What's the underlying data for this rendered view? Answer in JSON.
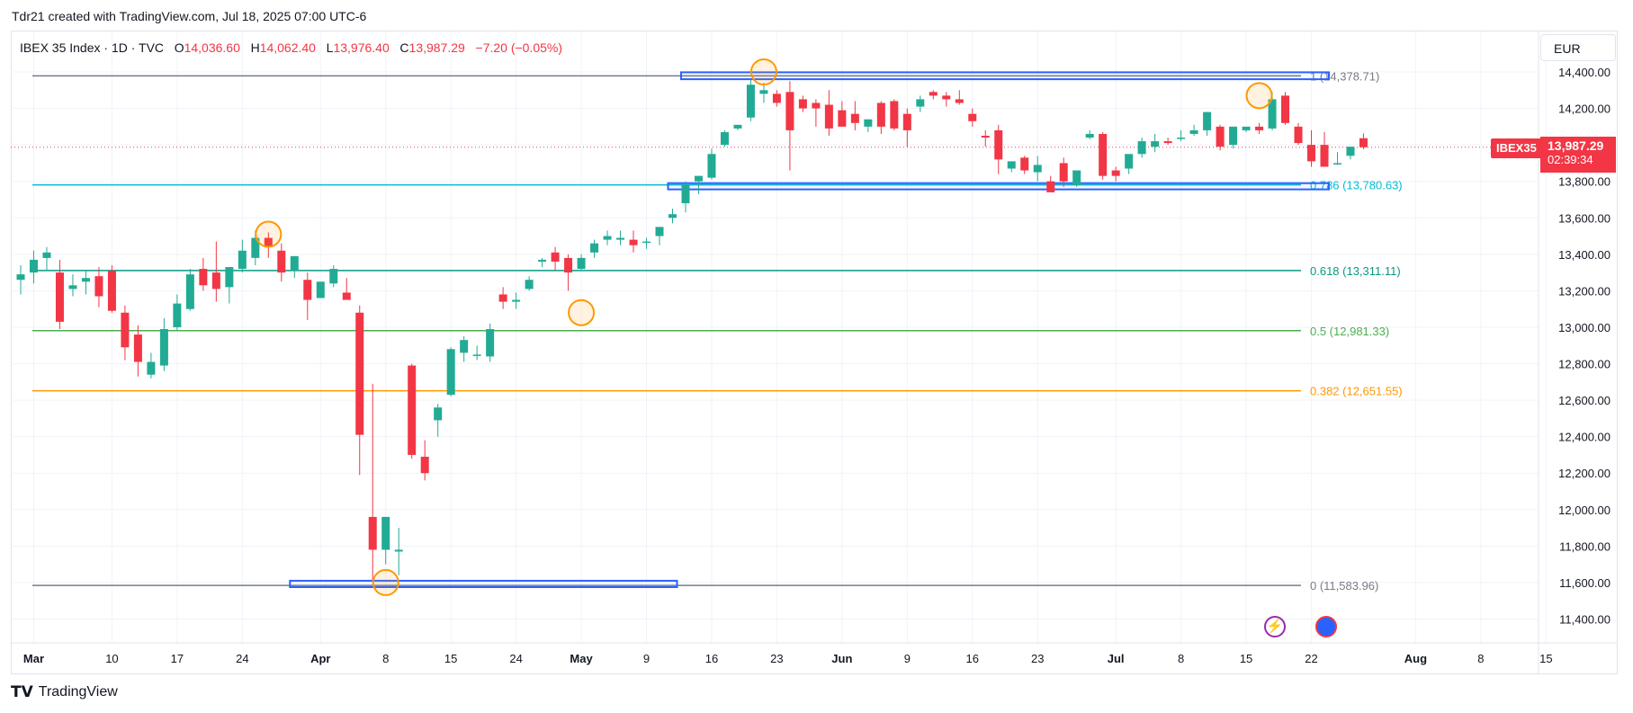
{
  "header": {
    "credit": "Tdr21 created with TradingView.com, Jul 18, 2025 07:00 UTC-6"
  },
  "legend": {
    "symbol": "IBEX 35 Index · 1D · TVC",
    "o_label": "O",
    "o_value": "14,036.60",
    "h_label": "H",
    "h_value": "14,062.40",
    "l_label": "L",
    "l_value": "13,976.40",
    "c_label": "C",
    "c_value": "13,987.29",
    "change": "−7.20 (−0.05%)"
  },
  "currency": "EUR",
  "price_badge": {
    "symbol": "IBEX35",
    "price": "13,987.29",
    "countdown": "02:39:34"
  },
  "footer": {
    "brand": "TradingView"
  },
  "colors": {
    "up": "#22ab94",
    "down": "#f23645",
    "grid": "#f0f3fa",
    "axis_text": "#131722",
    "box": "#2962ff",
    "circle": "#ff9800"
  },
  "events": [
    {
      "icon": "lightning-icon"
    },
    {
      "icon": "earnings-icon"
    }
  ],
  "chart_data": {
    "type": "candlestick",
    "title": "IBEX 35 Index · 1D · TVC",
    "ylim": [
      11300,
      14500
    ],
    "y_ticks": [
      11400,
      11600,
      11800,
      12000,
      12200,
      12400,
      12600,
      12800,
      13000,
      13200,
      13400,
      13600,
      13800,
      14000,
      14200,
      14400
    ],
    "y_tick_labels": [
      "11,400.00",
      "11,600.00",
      "11,800.00",
      "12,000.00",
      "12,200.00",
      "12,400.00",
      "12,600.00",
      "12,800.00",
      "13,000.00",
      "13,200.00",
      "13,400.00",
      "13,600.00",
      "13,800.00",
      "14,000.00",
      "14,200.00",
      "14,400.00"
    ],
    "x_ticks": [
      {
        "label": "Mar",
        "i": 1,
        "bold": true
      },
      {
        "label": "10",
        "i": 7
      },
      {
        "label": "17",
        "i": 12
      },
      {
        "label": "24",
        "i": 17
      },
      {
        "label": "Apr",
        "i": 23,
        "bold": true
      },
      {
        "label": "8",
        "i": 28
      },
      {
        "label": "15",
        "i": 33
      },
      {
        "label": "24",
        "i": 38
      },
      {
        "label": "May",
        "i": 43,
        "bold": true
      },
      {
        "label": "9",
        "i": 48
      },
      {
        "label": "16",
        "i": 53
      },
      {
        "label": "23",
        "i": 58
      },
      {
        "label": "Jun",
        "i": 63,
        "bold": true
      },
      {
        "label": "9",
        "i": 68
      },
      {
        "label": "16",
        "i": 73
      },
      {
        "label": "23",
        "i": 78
      },
      {
        "label": "Jul",
        "i": 84,
        "bold": true
      },
      {
        "label": "8",
        "i": 89
      },
      {
        "label": "15",
        "i": 94
      },
      {
        "label": "22",
        "i": 99
      },
      {
        "label": "Aug",
        "i": 107,
        "bold": true
      },
      {
        "label": "8",
        "i": 112
      },
      {
        "label": "15",
        "i": 117
      }
    ],
    "ohlc": [
      [
        13260,
        13340,
        13180,
        13290
      ],
      [
        13300,
        13420,
        13240,
        13370
      ],
      [
        13380,
        13440,
        13310,
        13410
      ],
      [
        13300,
        13370,
        12990,
        13030
      ],
      [
        13210,
        13290,
        13170,
        13230
      ],
      [
        13250,
        13310,
        13180,
        13270
      ],
      [
        13280,
        13330,
        13110,
        13170
      ],
      [
        13310,
        13340,
        13080,
        13090
      ],
      [
        13080,
        13120,
        12820,
        12890
      ],
      [
        12960,
        13010,
        12730,
        12810
      ],
      [
        12740,
        12860,
        12720,
        12810
      ],
      [
        12790,
        13050,
        12760,
        12990
      ],
      [
        13000,
        13180,
        12980,
        13130
      ],
      [
        13100,
        13320,
        13090,
        13290
      ],
      [
        13320,
        13380,
        13200,
        13230
      ],
      [
        13300,
        13470,
        13140,
        13210
      ],
      [
        13220,
        13310,
        13130,
        13330
      ],
      [
        13320,
        13480,
        13300,
        13420
      ],
      [
        13380,
        13530,
        13340,
        13490
      ],
      [
        13490,
        13520,
        13380,
        13440
      ],
      [
        13420,
        13460,
        13250,
        13300
      ],
      [
        13310,
        13390,
        13270,
        13390
      ],
      [
        13260,
        13300,
        13040,
        13150
      ],
      [
        13160,
        13240,
        13180,
        13250
      ],
      [
        13240,
        13340,
        13220,
        13320
      ],
      [
        13190,
        13270,
        13170,
        13150
      ],
      [
        13080,
        13120,
        12190,
        12410
      ],
      [
        11960,
        12690,
        11610,
        11780
      ],
      [
        11780,
        11960,
        11700,
        11960
      ],
      [
        11770,
        11900,
        11640,
        11780
      ],
      [
        12790,
        12800,
        12280,
        12300
      ],
      [
        12290,
        12380,
        12160,
        12200
      ],
      [
        12490,
        12580,
        12400,
        12560
      ],
      [
        12630,
        12890,
        12620,
        12880
      ],
      [
        12860,
        12950,
        12810,
        12930
      ],
      [
        12850,
        12900,
        12820,
        12850
      ],
      [
        12840,
        13020,
        12810,
        12990
      ],
      [
        13180,
        13220,
        13100,
        13140
      ],
      [
        13140,
        13190,
        13100,
        13150
      ],
      [
        13210,
        13280,
        13200,
        13260
      ],
      [
        13360,
        13380,
        13330,
        13370
      ],
      [
        13410,
        13440,
        13310,
        13360
      ],
      [
        13380,
        13400,
        13200,
        13300
      ],
      [
        13320,
        13400,
        13310,
        13380
      ],
      [
        13410,
        13480,
        13380,
        13460
      ],
      [
        13480,
        13530,
        13450,
        13500
      ],
      [
        13480,
        13530,
        13450,
        13490
      ],
      [
        13480,
        13530,
        13410,
        13450
      ],
      [
        13470,
        13490,
        13430,
        13470
      ],
      [
        13500,
        13530,
        13450,
        13550
      ],
      [
        13600,
        13650,
        13570,
        13620
      ],
      [
        13680,
        13800,
        13630,
        13780
      ],
      [
        13800,
        13830,
        13730,
        13830
      ],
      [
        13820,
        13980,
        13810,
        13950
      ],
      [
        14000,
        14080,
        13990,
        14070
      ],
      [
        14090,
        14110,
        14080,
        14110
      ],
      [
        14150,
        14360,
        14130,
        14330
      ],
      [
        14280,
        14340,
        14230,
        14300
      ],
      [
        14280,
        14300,
        14210,
        14230
      ],
      [
        14290,
        14350,
        13860,
        14080
      ],
      [
        14250,
        14270,
        14180,
        14200
      ],
      [
        14230,
        14250,
        14100,
        14200
      ],
      [
        14220,
        14300,
        14050,
        14090
      ],
      [
        14190,
        14240,
        14100,
        14100
      ],
      [
        14170,
        14240,
        14080,
        14120
      ],
      [
        14100,
        14130,
        14070,
        14140
      ],
      [
        14230,
        14240,
        14060,
        14100
      ],
      [
        14240,
        14250,
        14080,
        14090
      ],
      [
        14170,
        14200,
        13990,
        14080
      ],
      [
        14210,
        14270,
        14180,
        14250
      ],
      [
        14290,
        14300,
        14250,
        14270
      ],
      [
        14270,
        14290,
        14210,
        14250
      ],
      [
        14250,
        14300,
        14220,
        14230
      ],
      [
        14170,
        14200,
        14100,
        14130
      ],
      [
        14050,
        14080,
        13990,
        14040
      ],
      [
        14080,
        14110,
        13840,
        13920
      ],
      [
        13870,
        13900,
        13850,
        13910
      ],
      [
        13930,
        13940,
        13840,
        13860
      ],
      [
        13850,
        13940,
        13800,
        13890
      ],
      [
        13800,
        13830,
        13740,
        13740
      ],
      [
        13900,
        13930,
        13770,
        13800
      ],
      [
        13780,
        13860,
        13770,
        13860
      ],
      [
        14040,
        14080,
        14030,
        14060
      ],
      [
        14060,
        14070,
        13810,
        13830
      ],
      [
        13860,
        13880,
        13800,
        13830
      ],
      [
        13870,
        13920,
        13840,
        13950
      ],
      [
        13950,
        14040,
        13930,
        14020
      ],
      [
        13990,
        14060,
        13960,
        14020
      ],
      [
        14020,
        14040,
        14000,
        14010
      ],
      [
        14040,
        14080,
        14020,
        14040
      ],
      [
        14060,
        14110,
        14050,
        14080
      ],
      [
        14080,
        14180,
        14050,
        14180
      ],
      [
        14100,
        14110,
        13970,
        13990
      ],
      [
        14000,
        14100,
        13980,
        14100
      ],
      [
        14080,
        14090,
        14070,
        14100
      ],
      [
        14100,
        14120,
        14060,
        14080
      ],
      [
        14090,
        14290,
        14080,
        14250
      ],
      [
        14270,
        14290,
        14110,
        14120
      ],
      [
        14100,
        14120,
        14000,
        14010
      ],
      [
        14000,
        14080,
        13880,
        13910
      ],
      [
        14000,
        14070,
        13880,
        13880
      ],
      [
        13900,
        13960,
        13890,
        13900
      ],
      [
        13940,
        13990,
        13920,
        13990
      ],
      [
        14036.6,
        14062.4,
        13976.4,
        13987.29
      ]
    ],
    "fib_levels": [
      {
        "ratio": "1",
        "value": 14378.71,
        "label": "1 (14,378.71)",
        "color": "#787b86"
      },
      {
        "ratio": "0.786",
        "value": 13780.63,
        "label": "0.786 (13,780.63)",
        "color": "#00bcd4"
      },
      {
        "ratio": "0.618",
        "value": 13311.11,
        "label": "0.618 (13,311.11)",
        "color": "#089981"
      },
      {
        "ratio": "0.5",
        "value": 12981.33,
        "label": "0.5 (12,981.33)",
        "color": "#4caf50"
      },
      {
        "ratio": "0.382",
        "value": 12651.55,
        "label": "0.382 (12,651.55)",
        "color": "#ff9800"
      },
      {
        "ratio": "0",
        "value": 11583.96,
        "label": "0 (11,583.96)",
        "color": "#787b86"
      }
    ],
    "zones": [
      {
        "i0": 51,
        "i1": 100,
        "y0": 14360,
        "y1": 14398
      },
      {
        "i0": 50,
        "i1": 100,
        "y0": 13756,
        "y1": 13790
      },
      {
        "i0": 21,
        "i1": 50,
        "y0": 11575,
        "y1": 11610
      }
    ],
    "markers": [
      {
        "i": 19,
        "y": 13510
      },
      {
        "i": 28,
        "y": 11600
      },
      {
        "i": 43,
        "y": 13080
      },
      {
        "i": 57,
        "y": 14400
      },
      {
        "i": 95,
        "y": 14270
      }
    ],
    "last_price": 13987.29
  }
}
